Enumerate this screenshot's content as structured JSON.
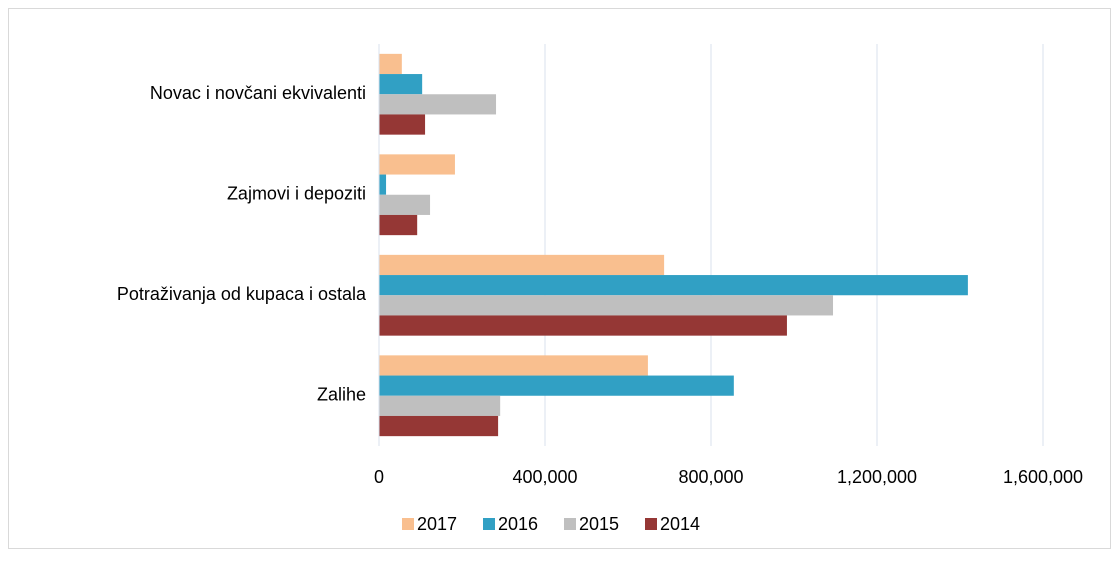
{
  "chart_data": {
    "type": "barh",
    "categories": [
      "Novac i novčani ekvivalenti",
      "Zajmovi i depoziti",
      "Potraživanja od kupaca i ostala",
      "Zalihe"
    ],
    "series": [
      {
        "name": "2017",
        "color": "#f9bf8f",
        "values": [
          55000,
          183000,
          687000,
          648000
        ]
      },
      {
        "name": "2016",
        "color": "#31a0c4",
        "values": [
          104000,
          17000,
          1419000,
          855000
        ]
      },
      {
        "name": "2015",
        "color": "#bfbfbf",
        "values": [
          282000,
          123000,
          1094000,
          292000
        ]
      },
      {
        "name": "2014",
        "color": "#953735",
        "values": [
          111000,
          92000,
          983000,
          287000
        ]
      }
    ],
    "xlim": [
      0,
      1600000
    ],
    "xticks": [
      0,
      {
        "value": 400000,
        "label": "400,000"
      },
      {
        "value": 800000,
        "label": "800,000"
      },
      {
        "value": 1200000,
        "label": "1,200,000"
      },
      {
        "value": 1600000,
        "label": "1,600,000"
      }
    ],
    "grid": true,
    "legend": "bottom"
  }
}
